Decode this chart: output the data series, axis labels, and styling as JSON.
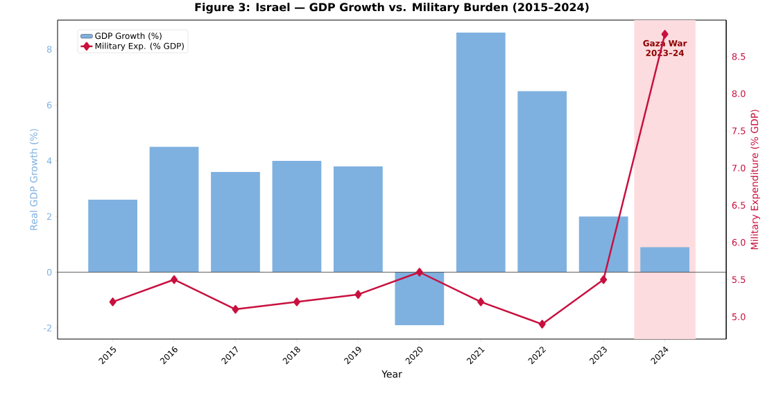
{
  "chart_data": {
    "type": "bar",
    "title": "Figure 3: Israel — GDP Growth vs. Military Burden (2015–2024)",
    "xlabel": "Year",
    "ylabel": "Real GDP Growth (%)",
    "y2label": "Military Expenditure (% GDP)",
    "categories": [
      "2015",
      "2016",
      "2017",
      "2018",
      "2019",
      "2020",
      "2021",
      "2022",
      "2023",
      "2024"
    ],
    "series": [
      {
        "name": "GDP Growth (%)",
        "color": "#7fb1e0",
        "values": [
          2.6,
          4.5,
          3.6,
          4.0,
          3.8,
          -1.9,
          8.6,
          6.5,
          2.0,
          0.9
        ]
      },
      {
        "name": "Military Exp. (% GDP)",
        "type": "line",
        "axis": "y2",
        "color": "#c8103e",
        "values": [
          5.2,
          5.5,
          5.1,
          5.2,
          5.3,
          5.6,
          5.2,
          4.9,
          5.5,
          8.8
        ]
      }
    ],
    "ylim": [
      -2.4,
      9.05
    ],
    "yticks": [
      -2,
      0,
      2,
      4,
      6,
      8
    ],
    "y2lim": [
      4.7,
      8.99
    ],
    "y2ticks": [
      {
        "value": 5.0,
        "label": "5.0"
      },
      {
        "value": 5.5,
        "label": "5.5"
      },
      {
        "value": 6.0,
        "label": "6.0"
      },
      {
        "value": 6.5,
        "label": "6.5"
      },
      {
        "value": 7.0,
        "label": "7.0"
      },
      {
        "value": 7.5,
        "label": "7.5"
      },
      {
        "value": 8.0,
        "label": "8.0"
      },
      {
        "value": 8.5,
        "label": "8.5"
      }
    ],
    "ref_lines": [
      {
        "axis": "y",
        "value": 0,
        "color": "#333333"
      }
    ],
    "bands": [
      {
        "axis": "x",
        "from": "2024",
        "to": "2024",
        "label": "Gaza War 2023–24",
        "color": "#fddcdf"
      }
    ],
    "legend": "top left",
    "marker": "diamond",
    "grid": false
  }
}
